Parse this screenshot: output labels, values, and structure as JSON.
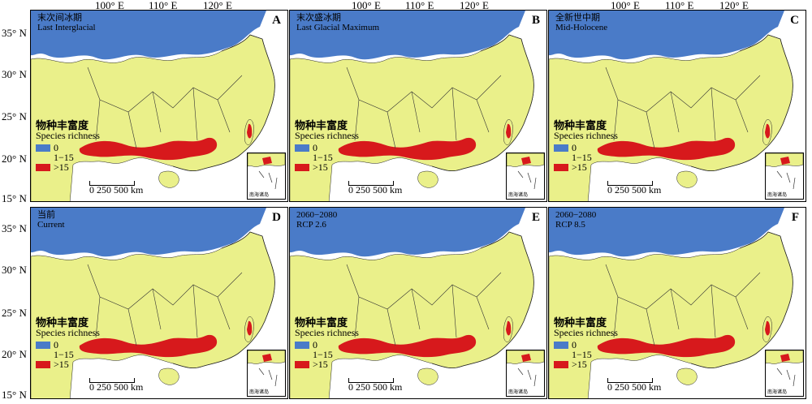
{
  "lon_labels": [
    "100° E",
    "110° E",
    "120° E"
  ],
  "lat_labels": [
    "35° N",
    "30° N",
    "25° N",
    "20° N",
    "15° N"
  ],
  "colors": {
    "zero": "#4a7bc8",
    "low": "#eaf08a",
    "high": "#d7191c"
  },
  "legend": {
    "title_zh": "物种丰富度",
    "title_en": "Species richness",
    "classes": [
      "0",
      "1−15",
      ">15"
    ]
  },
  "scale_label": "0   250 500 km",
  "inset_label": "南海诸岛",
  "panels": [
    {
      "letter": "A",
      "title_zh": "末次间冰期",
      "title_en": "Last Interglacial"
    },
    {
      "letter": "B",
      "title_zh": "末次盛冰期",
      "title_en": "Last Glacial Maximum"
    },
    {
      "letter": "C",
      "title_zh": "全新世中期",
      "title_en": "Mid-Holocene"
    },
    {
      "letter": "D",
      "title_zh": "当前",
      "title_en": "Current"
    },
    {
      "letter": "E",
      "title_zh": "2060−2080",
      "title_en": "RCP 2.6"
    },
    {
      "letter": "F",
      "title_zh": "2060−2080",
      "title_en": "RCP 8.5"
    }
  ]
}
